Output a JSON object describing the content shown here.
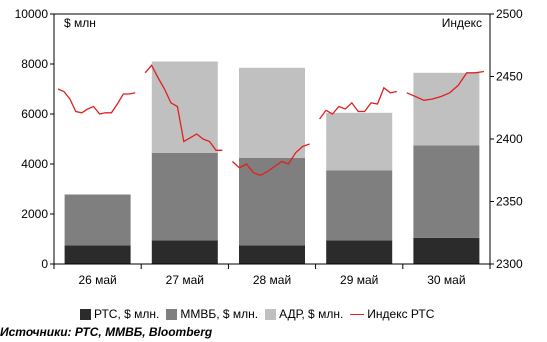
{
  "chart_data": {
    "type": "bar+line",
    "categories": [
      "26 май",
      "27 май",
      "28 май",
      "29 май",
      "30 май"
    ],
    "series": [
      {
        "name": "РТС, $ млн.",
        "color": "#2b2b2b",
        "values": [
          750,
          950,
          750,
          950,
          1050
        ]
      },
      {
        "name": "ММВБ, $ млн.",
        "color": "#7f7f7f",
        "values": [
          2030,
          3500,
          3500,
          2800,
          3700
        ]
      },
      {
        "name": "АДР, $ млн.",
        "color": "#c0c0c0",
        "values": [
          0,
          3650,
          3600,
          2300,
          2900
        ]
      }
    ],
    "line_series": {
      "name": "Индекс РТС",
      "color": "#e02020",
      "axis": "right",
      "points": [
        2440,
        2438,
        2432,
        2422,
        2421,
        2424,
        2426,
        2420,
        2421,
        2421,
        2428,
        2436,
        2436,
        2437,
        2453,
        2459,
        2449,
        2440,
        2429,
        2426,
        2398,
        2401,
        2404,
        2400,
        2398,
        2391,
        2391,
        2382,
        2377,
        2380,
        2373,
        2371,
        2374,
        2378,
        2382,
        2380,
        2389,
        2394,
        2396,
        2416,
        2423,
        2420,
        2426,
        2424,
        2429,
        2422,
        2422,
        2429,
        2428,
        2441,
        2437,
        2438,
        2437,
        2434,
        2431,
        2432,
        2434,
        2437,
        2443,
        2453,
        2453,
        2454
      ]
    },
    "left_axis": {
      "label": "$ млн",
      "min": 0,
      "max": 10000,
      "ticks": [
        0,
        2000,
        4000,
        6000,
        8000,
        10000
      ]
    },
    "right_axis": {
      "label": "Индекс",
      "min": 2300,
      "max": 2500,
      "ticks": [
        2300,
        2350,
        2400,
        2450,
        2500
      ]
    },
    "grid": false,
    "legend_position": "bottom"
  },
  "source_note": "Источники: РТС, ММВБ, Bloomberg"
}
